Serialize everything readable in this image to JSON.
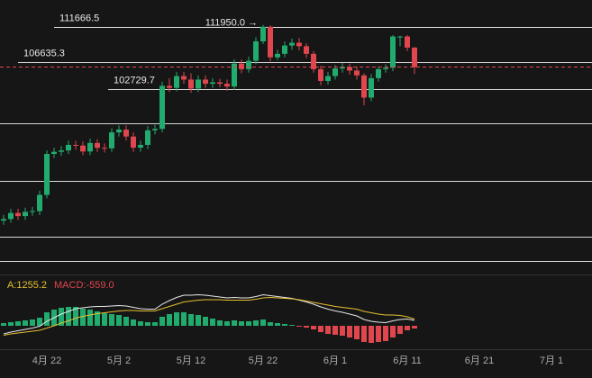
{
  "chart_data": {
    "type": "candlestick",
    "categories": [
      null,
      null,
      null,
      null,
      null,
      null,
      "4月 22",
      null,
      null,
      null,
      null,
      null,
      null,
      null,
      null,
      null,
      "5月 2",
      null,
      null,
      null,
      null,
      null,
      null,
      null,
      null,
      null,
      "5月 12",
      null,
      null,
      null,
      null,
      null,
      null,
      null,
      null,
      null,
      "5月 22",
      null,
      null,
      null,
      null,
      null,
      null,
      null,
      null,
      null,
      "6月 1",
      null,
      null,
      null,
      null,
      null,
      null,
      null,
      null,
      null,
      "6月 11",
      null,
      null,
      null,
      null,
      null,
      null,
      null,
      null,
      null,
      "6月 21",
      null,
      null,
      null,
      null,
      null,
      null,
      null,
      null,
      null,
      "7月 1"
    ],
    "open": [
      83800,
      84030,
      84900,
      84450,
      85060,
      85170,
      87500,
      93400,
      93700,
      93900,
      94700,
      94600,
      93750,
      94980,
      94280,
      94200,
      96500,
      96900,
      95900,
      94300,
      94700,
      96800,
      97000,
      103200,
      102900,
      104600,
      104100,
      102800,
      104100,
      103500,
      103700,
      103500,
      103100,
      106400,
      105600,
      106800,
      109600,
      111700,
      107300,
      107800,
      109000,
      109400,
      108900,
      107800,
      105600,
      103900,
      104600,
      105700,
      105900,
      105400,
      104700,
      101500,
      104300,
      105600,
      105800,
      110300,
      110300,
      108700,
      null,
      null,
      null,
      null,
      null,
      null,
      null,
      null,
      null,
      null,
      null,
      null,
      null,
      null,
      null,
      null,
      null,
      null,
      null
    ],
    "high": [
      84630,
      85500,
      85500,
      85660,
      85770,
      88100,
      93900,
      94300,
      94500,
      95300,
      95300,
      95200,
      95600,
      95500,
      94900,
      97100,
      97500,
      97500,
      96500,
      95300,
      97400,
      97600,
      103800,
      104300,
      105200,
      105200,
      105000,
      104700,
      104700,
      104300,
      104200,
      104100,
      107000,
      107000,
      107400,
      110200,
      111950,
      111900,
      108400,
      109600,
      110000,
      110100,
      109300,
      108200,
      106100,
      105200,
      106200,
      106500,
      106400,
      106000,
      105000,
      104900,
      106000,
      106300,
      110500,
      110400,
      110500,
      108800,
      null,
      null,
      null,
      null,
      null,
      null,
      null,
      null,
      null,
      null,
      null,
      null,
      null,
      null,
      null,
      null,
      null,
      null,
      null
    ],
    "low": [
      83200,
      83500,
      83900,
      83900,
      84500,
      84600,
      87000,
      92800,
      93100,
      93400,
      94000,
      93200,
      93200,
      93700,
      93600,
      93700,
      95900,
      95300,
      93700,
      93700,
      94100,
      96200,
      96500,
      102300,
      102400,
      103500,
      102200,
      102300,
      102900,
      102900,
      103000,
      102500,
      102600,
      105000,
      105100,
      106300,
      109200,
      106700,
      106900,
      107300,
      108400,
      108300,
      107200,
      105100,
      103300,
      103400,
      104100,
      105100,
      104800,
      104100,
      100400,
      101000,
      103800,
      105100,
      105300,
      108900,
      108200,
      104900,
      null,
      null,
      null,
      null,
      null,
      null,
      null,
      null,
      null,
      null,
      null,
      null,
      null,
      null,
      null,
      null,
      null,
      null,
      null
    ],
    "close": [
      84030,
      84900,
      84450,
      85060,
      85170,
      87500,
      93400,
      93700,
      93900,
      94700,
      94600,
      93750,
      94980,
      94280,
      94200,
      96500,
      96900,
      95900,
      94300,
      94700,
      96800,
      97000,
      103200,
      102900,
      104600,
      104100,
      102800,
      104100,
      103500,
      103700,
      103500,
      103100,
      106400,
      105600,
      106800,
      109600,
      111700,
      107300,
      107800,
      109000,
      109400,
      108900,
      107800,
      105600,
      103900,
      104600,
      105700,
      105900,
      105400,
      104700,
      101500,
      104300,
      105600,
      105800,
      110300,
      110300,
      108700,
      105900,
      null,
      null,
      null,
      null,
      null,
      null,
      null,
      null,
      null,
      null,
      null,
      null,
      null,
      null,
      null,
      null,
      null,
      null,
      null
    ],
    "up_color": "#22ab6e",
    "down_color": "#e0464e",
    "ylim": [
      76044,
      115552
    ],
    "levels": [
      111666.5,
      106635.3,
      102729.7
    ],
    "annotation": {
      "value": 111950,
      "label": "111950.0 →"
    },
    "macd": {
      "ylim": [
        -2300,
        3700
      ],
      "dea_label": "A:1255.2",
      "macd_label": "MACD:-559.0",
      "hist": [
        300,
        400,
        500,
        600,
        700,
        900,
        1500,
        1800,
        2000,
        2100,
        2100,
        1900,
        1800,
        1600,
        1400,
        1300,
        1200,
        1000,
        700,
        500,
        400,
        400,
        1000,
        1300,
        1500,
        1500,
        1300,
        1200,
        1000,
        800,
        600,
        500,
        600,
        500,
        500,
        600,
        700,
        400,
        300,
        200,
        100,
        -100,
        -200,
        -400,
        -700,
        -900,
        -1000,
        -1100,
        -1300,
        -1500,
        -1800,
        -1900,
        -1800,
        -1700,
        -1300,
        -900,
        -500,
        -300,
        null,
        null,
        null,
        null,
        null,
        null,
        null,
        null,
        null,
        null,
        null,
        null,
        null,
        null,
        null,
        null,
        null,
        null,
        null
      ],
      "series": [
        {
          "color": "#e8e8e8",
          "values": [
            -900,
            -700,
            -550,
            -400,
            -250,
            -50,
            500,
            900,
            1300,
            1600,
            1900,
            2000,
            2100,
            2150,
            2150,
            2200,
            2250,
            2200,
            2050,
            1900,
            1850,
            1850,
            2400,
            2800,
            3150,
            3400,
            3400,
            3450,
            3400,
            3300,
            3200,
            3100,
            3150,
            3100,
            3100,
            3250,
            3450,
            3350,
            3250,
            3150,
            3050,
            2850,
            2650,
            2400,
            2100,
            1850,
            1650,
            1500,
            1300,
            1100,
            700,
            500,
            400,
            350,
            550,
            700,
            750,
            600,
            null,
            null,
            null,
            null,
            null,
            null,
            null,
            null,
            null,
            null,
            null,
            null,
            null,
            null,
            null,
            null,
            null,
            null,
            null
          ]
        },
        {
          "color": "#e6c030",
          "values": [
            -1050,
            -900,
            -800,
            -700,
            -600,
            -500,
            -250,
            0,
            300,
            550,
            850,
            1050,
            1200,
            1350,
            1450,
            1550,
            1650,
            1700,
            1700,
            1650,
            1650,
            1650,
            1900,
            2150,
            2400,
            2650,
            2750,
            2850,
            2900,
            2900,
            2900,
            2850,
            2850,
            2850,
            2850,
            2950,
            3100,
            3150,
            3100,
            3050,
            3000,
            2900,
            2750,
            2600,
            2450,
            2300,
            2150,
            2050,
            1950,
            1850,
            1600,
            1450,
            1300,
            1200,
            1200,
            1150,
            1000,
            750,
            null,
            null,
            null,
            null,
            null,
            null,
            null,
            null,
            null,
            null,
            null,
            null,
            null,
            null,
            null,
            null,
            null,
            null,
            null
          ]
        }
      ]
    }
  }
}
